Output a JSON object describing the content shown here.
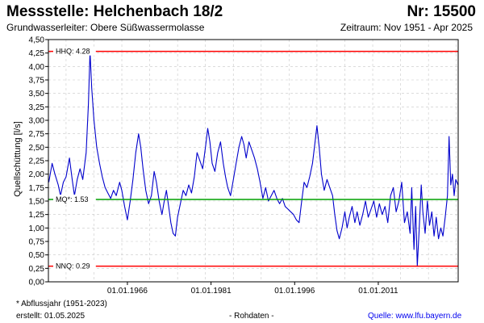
{
  "header": {
    "station": "Messstelle: Helchenbach 18/2",
    "number": "Nr: 15500",
    "aquifer": "Grundwasserleiter:   Obere Süßwassermolasse",
    "period": "Zeitraum: Nov 1951 - Apr 2025"
  },
  "footer": {
    "note": "* Abflussjahr (1951-2023)",
    "created": "erstellt:  01.05.2025",
    "rawdata": "- Rohdaten -",
    "source_label": "Quelle: ",
    "source_link": "www.lfu.bayern.de"
  },
  "colors": {
    "series": "#0000cc",
    "hhq": "#ff0000",
    "nnq": "#ff0000",
    "mq": "#00a000",
    "grid": "#c8c8c8"
  },
  "chart_data": {
    "type": "line",
    "title": "",
    "xlabel": "",
    "ylabel": "Quellschüttung [l/s]",
    "ylim": [
      0,
      4.5
    ],
    "xlim": [
      "1951-11",
      "2025-04"
    ],
    "grid": true,
    "yticks": [
      "0,00",
      "0,25",
      "0,50",
      "0,75",
      "1,00",
      "1,25",
      "1,50",
      "1,75",
      "2,00",
      "2,25",
      "2,50",
      "2,75",
      "3,00",
      "3,25",
      "3,50",
      "3,75",
      "4,00",
      "4,25",
      "4,50"
    ],
    "xticks": [
      "01.01.1966",
      "01.01.1981",
      "01.01.1996",
      "01.01.2011"
    ],
    "reference_lines": [
      {
        "label": "HHQ: 4.28",
        "value": 4.28,
        "color": "#ff0000"
      },
      {
        "label": "MQ*: 1.53",
        "value": 1.53,
        "color": "#00a000"
      },
      {
        "label": "NNQ: 0.29",
        "value": 0.29,
        "color": "#ff0000"
      }
    ],
    "series": [
      {
        "values": [
          [
            1951.9,
            1.85
          ],
          [
            1952.5,
            2.2
          ],
          [
            1953.0,
            2.0
          ],
          [
            1953.6,
            1.8
          ],
          [
            1954.0,
            1.6
          ],
          [
            1954.5,
            1.85
          ],
          [
            1955.0,
            1.95
          ],
          [
            1955.6,
            2.3
          ],
          [
            1956.1,
            1.9
          ],
          [
            1956.5,
            1.6
          ],
          [
            1957.0,
            1.9
          ],
          [
            1957.5,
            2.1
          ],
          [
            1958.0,
            1.9
          ],
          [
            1958.6,
            2.4
          ],
          [
            1959.0,
            3.3
          ],
          [
            1959.3,
            4.28
          ],
          [
            1959.6,
            3.6
          ],
          [
            1960.0,
            3.0
          ],
          [
            1960.5,
            2.5
          ],
          [
            1961.0,
            2.2
          ],
          [
            1961.5,
            1.95
          ],
          [
            1962.0,
            1.75
          ],
          [
            1962.5,
            1.65
          ],
          [
            1963.0,
            1.55
          ],
          [
            1963.5,
            1.7
          ],
          [
            1964.0,
            1.6
          ],
          [
            1964.6,
            1.85
          ],
          [
            1965.0,
            1.7
          ],
          [
            1965.5,
            1.4
          ],
          [
            1966.0,
            1.15
          ],
          [
            1966.5,
            1.5
          ],
          [
            1967.0,
            1.9
          ],
          [
            1967.5,
            2.4
          ],
          [
            1968.0,
            2.75
          ],
          [
            1968.4,
            2.5
          ],
          [
            1968.8,
            2.1
          ],
          [
            1969.3,
            1.7
          ],
          [
            1969.8,
            1.45
          ],
          [
            1970.3,
            1.6
          ],
          [
            1970.8,
            2.05
          ],
          [
            1971.2,
            1.85
          ],
          [
            1971.7,
            1.5
          ],
          [
            1972.2,
            1.25
          ],
          [
            1972.6,
            1.5
          ],
          [
            1973.0,
            1.7
          ],
          [
            1973.4,
            1.4
          ],
          [
            1973.8,
            1.1
          ],
          [
            1974.2,
            0.9
          ],
          [
            1974.6,
            0.85
          ],
          [
            1975.0,
            1.2
          ],
          [
            1975.5,
            1.45
          ],
          [
            1976.0,
            1.7
          ],
          [
            1976.5,
            1.6
          ],
          [
            1977.0,
            1.8
          ],
          [
            1977.5,
            1.65
          ],
          [
            1978.0,
            1.95
          ],
          [
            1978.5,
            2.4
          ],
          [
            1979.0,
            2.25
          ],
          [
            1979.5,
            2.1
          ],
          [
            1980.0,
            2.5
          ],
          [
            1980.4,
            2.85
          ],
          [
            1980.8,
            2.6
          ],
          [
            1981.2,
            2.2
          ],
          [
            1981.7,
            2.05
          ],
          [
            1982.2,
            2.4
          ],
          [
            1982.7,
            2.6
          ],
          [
            1983.2,
            2.2
          ],
          [
            1983.6,
            1.95
          ],
          [
            1984.0,
            1.75
          ],
          [
            1984.5,
            1.6
          ],
          [
            1985.0,
            1.9
          ],
          [
            1985.5,
            2.2
          ],
          [
            1986.0,
            2.5
          ],
          [
            1986.5,
            2.7
          ],
          [
            1986.9,
            2.55
          ],
          [
            1987.3,
            2.3
          ],
          [
            1987.8,
            2.6
          ],
          [
            1988.3,
            2.45
          ],
          [
            1988.8,
            2.3
          ],
          [
            1989.3,
            2.1
          ],
          [
            1989.8,
            1.85
          ],
          [
            1990.3,
            1.55
          ],
          [
            1990.8,
            1.75
          ],
          [
            1991.3,
            1.5
          ],
          [
            1991.8,
            1.6
          ],
          [
            1992.3,
            1.7
          ],
          [
            1992.8,
            1.55
          ],
          [
            1993.3,
            1.45
          ],
          [
            1993.8,
            1.55
          ],
          [
            1994.3,
            1.4
          ],
          [
            1994.8,
            1.35
          ],
          [
            1995.3,
            1.3
          ],
          [
            1995.8,
            1.25
          ],
          [
            1996.3,
            1.15
          ],
          [
            1996.8,
            1.1
          ],
          [
            1997.2,
            1.45
          ],
          [
            1997.7,
            1.85
          ],
          [
            1998.2,
            1.75
          ],
          [
            1998.7,
            1.95
          ],
          [
            1999.2,
            2.2
          ],
          [
            1999.6,
            2.55
          ],
          [
            2000.0,
            2.9
          ],
          [
            2000.4,
            2.5
          ],
          [
            2000.8,
            2.0
          ],
          [
            2001.3,
            1.7
          ],
          [
            2001.8,
            1.9
          ],
          [
            2002.3,
            1.75
          ],
          [
            2002.8,
            1.6
          ],
          [
            2003.2,
            1.25
          ],
          [
            2003.6,
            0.95
          ],
          [
            2004.0,
            0.8
          ],
          [
            2004.5,
            1.0
          ],
          [
            2005.0,
            1.3
          ],
          [
            2005.4,
            1.0
          ],
          [
            2005.8,
            1.2
          ],
          [
            2006.3,
            1.4
          ],
          [
            2006.8,
            1.1
          ],
          [
            2007.2,
            1.3
          ],
          [
            2007.7,
            1.05
          ],
          [
            2008.2,
            1.25
          ],
          [
            2008.7,
            1.5
          ],
          [
            2009.2,
            1.2
          ],
          [
            2009.7,
            1.35
          ],
          [
            2010.2,
            1.5
          ],
          [
            2010.7,
            1.2
          ],
          [
            2011.2,
            1.45
          ],
          [
            2011.7,
            1.25
          ],
          [
            2012.2,
            1.4
          ],
          [
            2012.7,
            1.1
          ],
          [
            2013.2,
            1.6
          ],
          [
            2013.7,
            1.75
          ],
          [
            2014.2,
            1.3
          ],
          [
            2014.7,
            1.5
          ],
          [
            2015.2,
            1.85
          ],
          [
            2015.7,
            1.1
          ],
          [
            2016.2,
            1.3
          ],
          [
            2016.7,
            0.9
          ],
          [
            2017.0,
            1.75
          ],
          [
            2017.4,
            0.6
          ],
          [
            2017.7,
            1.4
          ],
          [
            2018.0,
            0.29
          ],
          [
            2018.3,
            0.9
          ],
          [
            2018.7,
            1.8
          ],
          [
            2019.0,
            1.3
          ],
          [
            2019.4,
            0.9
          ],
          [
            2019.8,
            1.5
          ],
          [
            2020.2,
            1.05
          ],
          [
            2020.6,
            1.3
          ],
          [
            2021.0,
            0.85
          ],
          [
            2021.4,
            1.2
          ],
          [
            2021.8,
            0.8
          ],
          [
            2022.2,
            1.0
          ],
          [
            2022.6,
            0.85
          ],
          [
            2023.0,
            1.2
          ],
          [
            2023.4,
            1.6
          ],
          [
            2023.7,
            2.7
          ],
          [
            2024.0,
            1.8
          ],
          [
            2024.3,
            2.0
          ],
          [
            2024.6,
            1.6
          ],
          [
            2024.9,
            1.9
          ],
          [
            2025.3,
            1.8
          ]
        ]
      }
    ]
  }
}
